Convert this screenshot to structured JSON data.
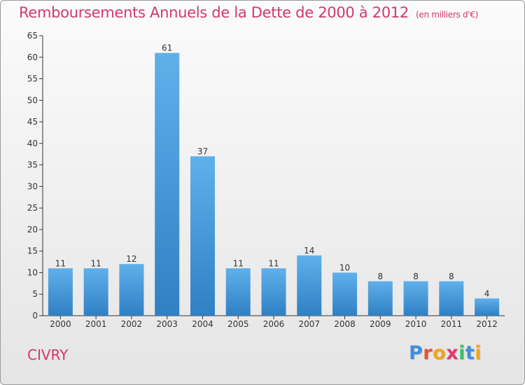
{
  "chart_data": {
    "type": "bar",
    "title": "Remboursements Annuels de la Dette de 2000 à 2012",
    "subtitle": "(en milliers d'€)",
    "categories": [
      "2000",
      "2001",
      "2002",
      "2003",
      "2004",
      "2005",
      "2006",
      "2007",
      "2008",
      "2009",
      "2010",
      "2011",
      "2012"
    ],
    "values": [
      11,
      11,
      12,
      61,
      37,
      11,
      11,
      14,
      10,
      8,
      8,
      8,
      4
    ],
    "ylim": [
      0,
      65
    ],
    "yticks": [
      0,
      5,
      10,
      15,
      20,
      25,
      30,
      35,
      40,
      45,
      50,
      55,
      60,
      65
    ],
    "grid": false,
    "colors": {
      "bar": "#4f9fdc",
      "title": "#d2386a"
    }
  },
  "commune": "CIVRY",
  "logo": {
    "letters": [
      {
        "char": "P",
        "color": "#3d8ee0"
      },
      {
        "char": "r",
        "color": "#e8542e"
      },
      {
        "char": "o",
        "color": "#f2a51a"
      },
      {
        "char": "x",
        "color": "#e23873"
      },
      {
        "char": "i",
        "color": "#3ebf68"
      },
      {
        "char": "t",
        "color": "#3d8ee0"
      },
      {
        "char": "i",
        "color": "#f2a51a"
      }
    ]
  }
}
